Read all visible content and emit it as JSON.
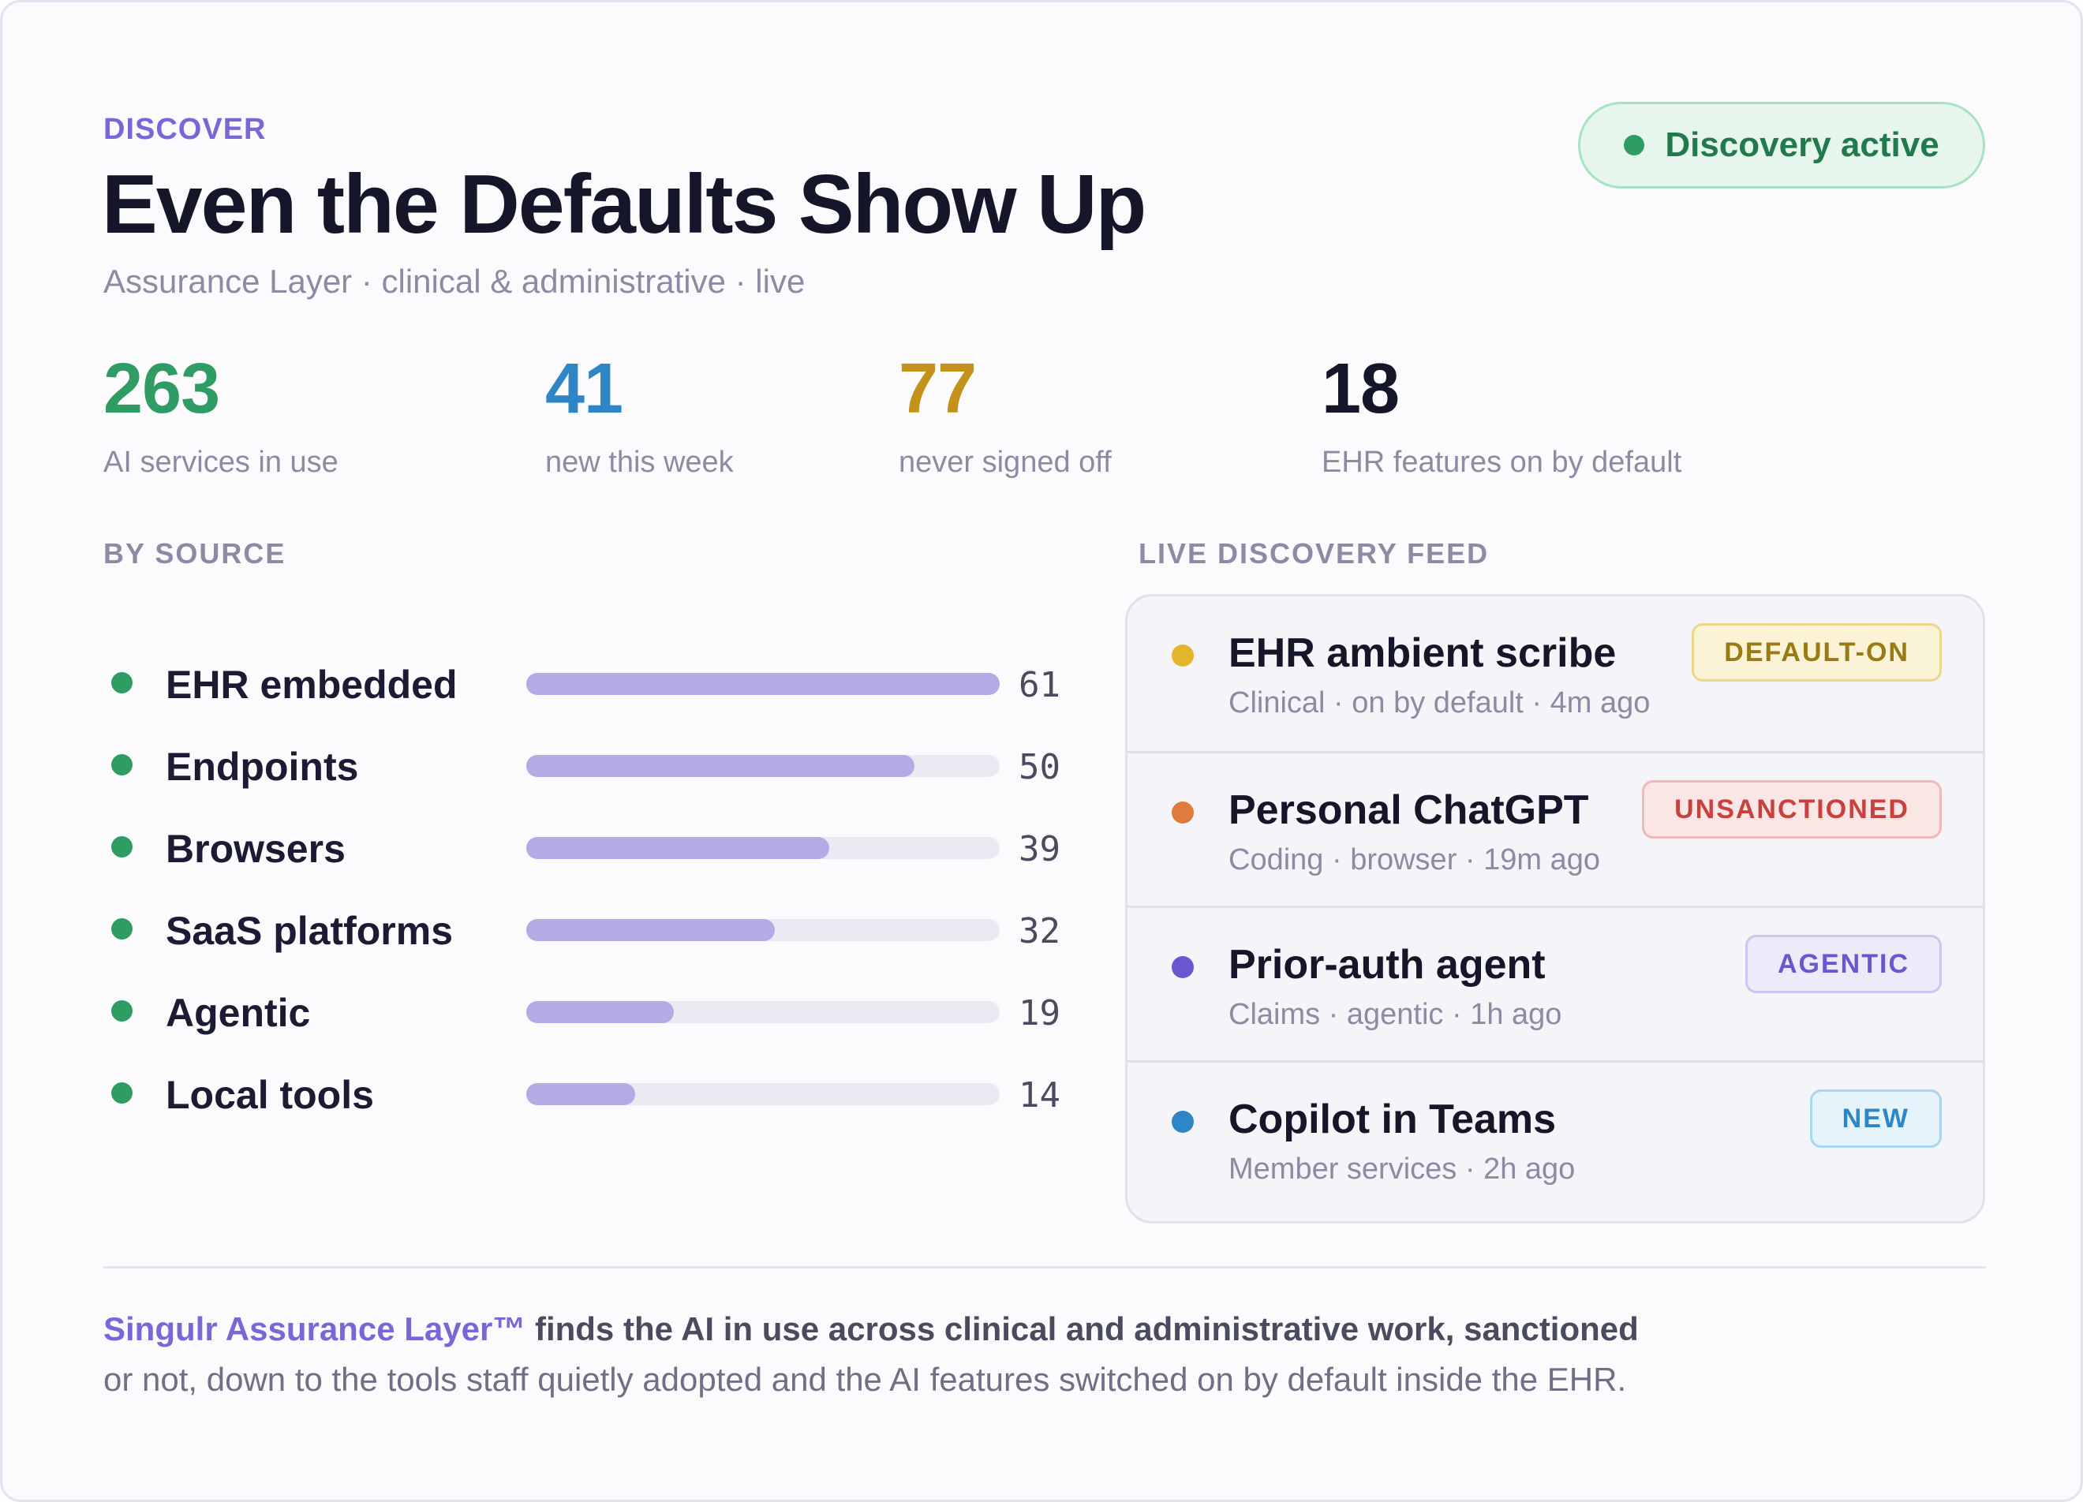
{
  "header": {
    "eyebrow": "DISCOVER",
    "title": "Even the Defaults Show Up",
    "subtitle": "Assurance Layer · clinical & administrative · live",
    "status": {
      "label": "Discovery active",
      "color": "#2e9c63"
    }
  },
  "stats": [
    {
      "value": "263",
      "label": "AI services in use",
      "color": "#2e9c63"
    },
    {
      "value": "41",
      "label": "new this week",
      "color": "#2f86c6"
    },
    {
      "value": "77",
      "label": "never signed off",
      "color": "#c4921a"
    },
    {
      "value": "18",
      "label": "EHR features on by default",
      "color": "#16162a"
    }
  ],
  "by_source": {
    "label": "BY SOURCE",
    "max": 61,
    "items": [
      {
        "name": "EHR embedded",
        "count": 61
      },
      {
        "name": "Endpoints",
        "count": 50
      },
      {
        "name": "Browsers",
        "count": 39
      },
      {
        "name": "SaaS platforms",
        "count": 32
      },
      {
        "name": "Agentic",
        "count": 19
      },
      {
        "name": "Local tools",
        "count": 14
      }
    ]
  },
  "feed": {
    "label": "LIVE DISCOVERY FEED",
    "items": [
      {
        "title": "EHR ambient scribe",
        "meta": "Clinical · on by default · 4m ago",
        "badge": "DEFAULT-ON",
        "dot_color": "#e3b52a",
        "badge_text": "#9a7a12",
        "badge_bg": "#fbf3d6",
        "badge_border": "#ecd68a"
      },
      {
        "title": "Personal ChatGPT",
        "meta": "Coding · browser · 19m ago",
        "badge": "UNSANCTIONED",
        "dot_color": "#e07a3e",
        "badge_text": "#c9413f",
        "badge_bg": "#fbe6e6",
        "badge_border": "#f0b9b9"
      },
      {
        "title": "Prior-auth agent",
        "meta": "Claims · agentic · 1h ago",
        "badge": "AGENTIC",
        "dot_color": "#6a57cf",
        "badge_text": "#6a57cf",
        "badge_bg": "#ecebfa",
        "badge_border": "#cdc6f0"
      },
      {
        "title": "Copilot in Teams",
        "meta": "Member services · 2h ago",
        "badge": "NEW",
        "dot_color": "#2f86c6",
        "badge_text": "#2f86c6",
        "badge_bg": "#e5f3fb",
        "badge_border": "#a9d5ee"
      }
    ]
  },
  "footer": {
    "brand": "Singulr Assurance Layer™",
    "strong": " finds the AI in use across clinical and administrative work, sanctioned",
    "rest": "or not, down to the tools staff quietly adopted and the AI features switched on by default inside the EHR."
  }
}
